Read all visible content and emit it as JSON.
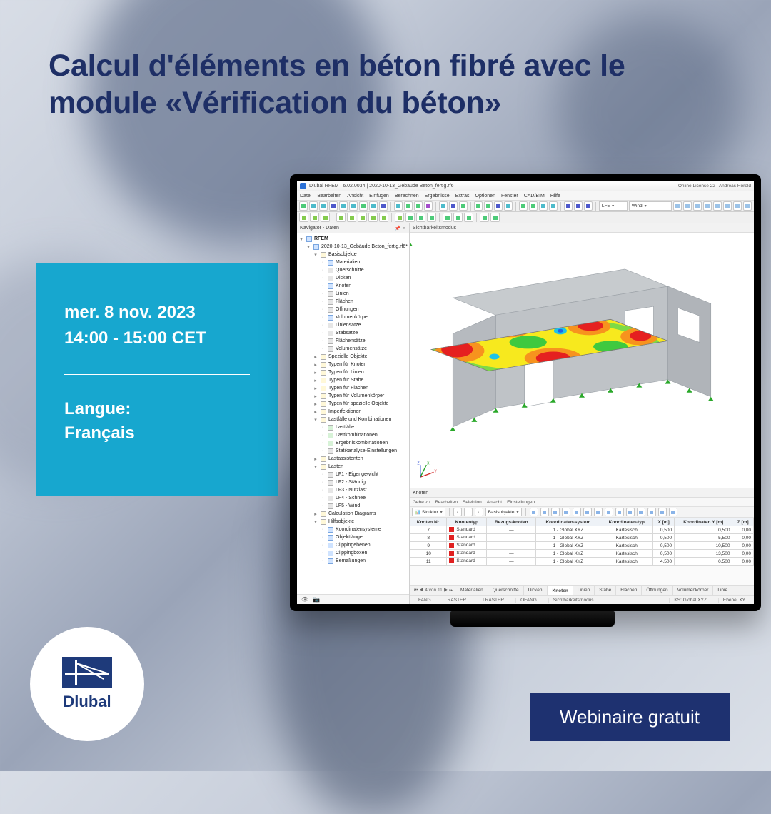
{
  "promo": {
    "headline": "Calcul d'éléments en béton fibré avec le module «Vérification du béton»",
    "date": "mer. 8 nov. 2023",
    "time": "14:00 - 15:00 CET",
    "lang_label": "Langue:",
    "lang_value": "Français",
    "brand": "Dlubal",
    "badge": "Webinaire gratuit",
    "accent_cyan": "#17a7cf",
    "accent_navy": "#1e3170",
    "headline_color": "#1e2f66"
  },
  "app": {
    "title": "Dlubal RFEM | 6.02.0034 | 2020-10-13_Gebäude Beton_fertig.rf6",
    "license": "Online License 22 | Andreas Hörold",
    "menus": [
      "Datei",
      "Bearbeiten",
      "Ansicht",
      "Einfügen",
      "Berechnen",
      "Ergebnisse",
      "Extras",
      "Optionen",
      "Fenster",
      "CAD/BIM",
      "Hilfe"
    ],
    "toolbar1_combo1": "LF5",
    "toolbar1_combo2": "Wind",
    "toolbar_icons_row1": [
      "new",
      "open",
      "save",
      "print",
      "undo",
      "redo",
      "cut",
      "copy",
      "paste",
      "sep",
      "zoom",
      "fit",
      "pan",
      "rotate",
      "sep",
      "mesh",
      "solve",
      "res",
      "sep",
      "iso",
      "top",
      "front",
      "side",
      "sep",
      "vis",
      "sel",
      "snap",
      "grid",
      "sep",
      "tool1",
      "tool2",
      "tool3"
    ],
    "toolbar_icons_row2": [
      "n1",
      "n2",
      "n3",
      "sep",
      "n4",
      "n5",
      "n6",
      "n7",
      "n8",
      "sep",
      "n9",
      "n10",
      "n11",
      "n12",
      "sep",
      "n13",
      "n14",
      "n15",
      "sep",
      "n16",
      "n17"
    ],
    "navigator": {
      "title": "Navigator - Daten",
      "root": "RFEM",
      "model": "2020-10-13_Gebäude Beton_fertig.rf6*",
      "groups": [
        {
          "label": "Basisobjekte",
          "open": true,
          "icon": "folder",
          "children": [
            {
              "label": "Materialien",
              "icon": "blue"
            },
            {
              "label": "Querschnitte",
              "icon": "grey"
            },
            {
              "label": "Dicken",
              "icon": "grey"
            },
            {
              "label": "Knoten",
              "icon": "blue"
            },
            {
              "label": "Linien",
              "icon": "grey"
            },
            {
              "label": "Flächen",
              "icon": "grey"
            },
            {
              "label": "Öffnungen",
              "icon": "grey"
            },
            {
              "label": "Volumenkörper",
              "icon": "blue"
            },
            {
              "label": "Liniensätze",
              "icon": "grey"
            },
            {
              "label": "Stabsätze",
              "icon": "grey"
            },
            {
              "label": "Flächensätze",
              "icon": "grey"
            },
            {
              "label": "Volumensätze",
              "icon": "grey"
            }
          ]
        },
        {
          "label": "Spezielle Objekte",
          "open": false,
          "icon": "folder"
        },
        {
          "label": "Typen für Knoten",
          "open": false,
          "icon": "folder"
        },
        {
          "label": "Typen für Linien",
          "open": false,
          "icon": "folder"
        },
        {
          "label": "Typen für Stäbe",
          "open": false,
          "icon": "folder"
        },
        {
          "label": "Typen für Flächen",
          "open": false,
          "icon": "folder"
        },
        {
          "label": "Typen für Volumenkörper",
          "open": false,
          "icon": "folder"
        },
        {
          "label": "Typen für spezielle Objekte",
          "open": false,
          "icon": "folder"
        },
        {
          "label": "Imperfektionen",
          "open": false,
          "icon": "folder"
        },
        {
          "label": "Lastfälle und Kombinationen",
          "open": true,
          "icon": "folder",
          "children": [
            {
              "label": "Lastfälle",
              "icon": "green"
            },
            {
              "label": "Lastkombinationen",
              "icon": "green"
            },
            {
              "label": "Ergebniskombinationen",
              "icon": "green"
            },
            {
              "label": "Statikanalyse-Einstellungen",
              "icon": "grey"
            }
          ]
        },
        {
          "label": "Lastassistenten",
          "open": false,
          "icon": "folder"
        },
        {
          "label": "Lasten",
          "open": true,
          "icon": "folder",
          "children": [
            {
              "label": "LF1 - Eigengewicht",
              "icon": "grey"
            },
            {
              "label": "LF2 - Ständig",
              "icon": "grey"
            },
            {
              "label": "LF3 - Nutzlast",
              "icon": "grey"
            },
            {
              "label": "LF4 - Schnee",
              "icon": "grey"
            },
            {
              "label": "LF5 - Wind",
              "icon": "grey"
            }
          ]
        },
        {
          "label": "Calculation Diagrams",
          "open": false,
          "icon": "folder"
        },
        {
          "label": "Hilfsobjekte",
          "open": true,
          "icon": "folder",
          "children": [
            {
              "label": "Koordinatensysteme",
              "icon": "blue"
            },
            {
              "label": "Objektfänge",
              "icon": "blue"
            },
            {
              "label": "Clippingebenen",
              "icon": "blue"
            },
            {
              "label": "Clippingboxen",
              "icon": "blue"
            },
            {
              "label": "Bemaßungen",
              "icon": "blue"
            }
          ]
        }
      ]
    },
    "viewport_tab": "Sichtbarkeitsmodus",
    "knoten": {
      "title": "Knoten",
      "toolbar_labels": [
        "Gehe zu",
        "Bearbeiten",
        "Selektion",
        "Ansicht",
        "Einstellungen"
      ],
      "combo_struktur": "Struktur",
      "combo_basis": "Basisobjekte",
      "columns": [
        "Knoten Nr.",
        "Knotentyp",
        "Bezugs-knoten",
        "Koordinaten-system",
        "Koordinaten-typ",
        "X [m]",
        "Koordinaten Y [m]",
        "Z [m]"
      ],
      "rows": [
        [
          "7",
          "Standard",
          "—",
          "1 - Global XYZ",
          "Kartesisch",
          "0,500",
          "0,500",
          "0,00"
        ],
        [
          "8",
          "Standard",
          "—",
          "1 - Global XYZ",
          "Kartesisch",
          "0,500",
          "5,500",
          "0,00"
        ],
        [
          "9",
          "Standard",
          "—",
          "1 - Global XYZ",
          "Kartesisch",
          "0,500",
          "10,500",
          "0,00"
        ],
        [
          "10",
          "Standard",
          "—",
          "1 - Global XYZ",
          "Kartesisch",
          "0,500",
          "13,500",
          "0,00"
        ],
        [
          "11",
          "Standard",
          "—",
          "1 - Global XYZ",
          "Kartesisch",
          "4,500",
          "0,500",
          "0,00"
        ]
      ],
      "pager": "4 von 11",
      "tabs": [
        "Materialien",
        "Querschnitte",
        "Dicken",
        "Knoten",
        "Linien",
        "Stäbe",
        "Flächen",
        "Öffnungen",
        "Volumenkörper",
        "Linie"
      ],
      "active_tab": "Knoten"
    },
    "statusbar": {
      "items": [
        "FANG",
        "RASTER",
        "LRASTER",
        "OFANG",
        "Sichtbarkeitsmodus"
      ],
      "center1": "KS: Global XYZ",
      "center2": "Ebene: XY"
    },
    "heatmap_colors": {
      "red": "#e52020",
      "orange": "#f7931e",
      "yellow": "#f7e91e",
      "green": "#3fc93f",
      "cyan": "#1ec3e8",
      "blue": "#1e62e8"
    },
    "building_color": "#bfc3c7"
  }
}
